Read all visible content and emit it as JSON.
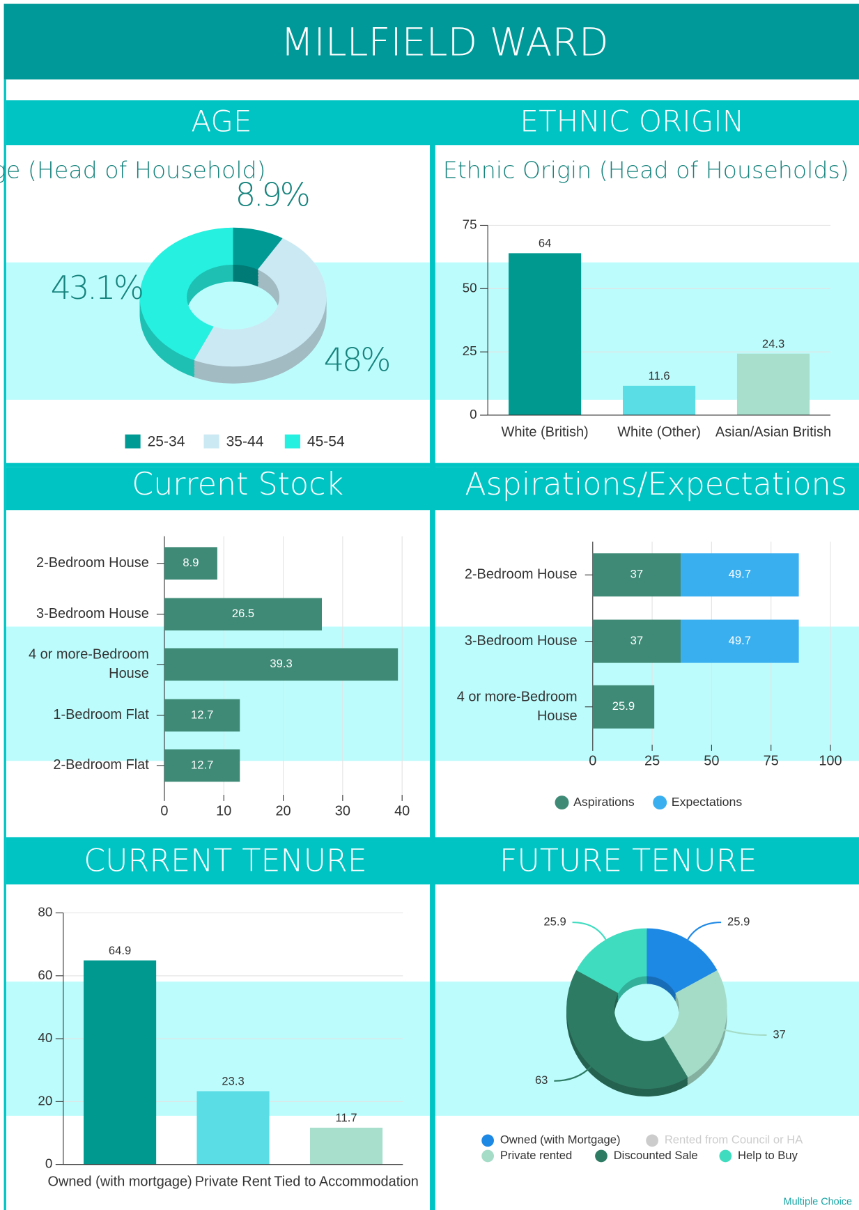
{
  "title": "MILLFIELD WARD",
  "footer": "Multiple Choice",
  "chart_data": [
    {
      "type": "pie",
      "heading": "AGE",
      "title": "Age (Head of Household)",
      "categories": [
        "25-34",
        "35-44",
        "45-54"
      ],
      "values": [
        8.9,
        48,
        43.1
      ],
      "value_labels": [
        "8.9%",
        "48%",
        "43.1%"
      ],
      "colors": [
        "#009a94",
        "#cbe9f3",
        "#26f0e0"
      ],
      "legend": "bottom"
    },
    {
      "type": "bar",
      "heading": "ETHNIC ORIGIN",
      "title": "Ethnic Origin (Head of Households)",
      "categories": [
        "White (British)",
        "White (Other)",
        "Asian/Asian British"
      ],
      "values": [
        64,
        11.6,
        24.3
      ],
      "colors": [
        "#009990",
        "#5adde5",
        "#a8dfcc"
      ],
      "ylim": [
        0,
        75
      ],
      "yticks": [
        0,
        25,
        50,
        75
      ],
      "grid": true
    },
    {
      "type": "hbar",
      "heading": "Current Stock",
      "categories": [
        "2-Bedroom House",
        "3-Bedroom House",
        "4 or more-Bedroom House",
        "1-Bedroom Flat",
        "2-Bedroom Flat"
      ],
      "values": [
        8.9,
        26.5,
        39.3,
        12.7,
        12.7
      ],
      "color": "#3f8a76",
      "xlim": [
        0,
        40
      ],
      "xticks": [
        0,
        10,
        20,
        30,
        40
      ],
      "grid": true
    },
    {
      "type": "stacked_hbar",
      "heading": "Aspirations/Expectations",
      "categories": [
        "2-Bedroom House",
        "3-Bedroom House",
        "4 or more-Bedroom House"
      ],
      "series": [
        {
          "name": "Aspirations",
          "color": "#3f8a76",
          "values": [
            37,
            37,
            25.9
          ]
        },
        {
          "name": "Expectations",
          "color": "#3aafef",
          "values": [
            49.7,
            49.7,
            null
          ]
        }
      ],
      "xlim": [
        0,
        100
      ],
      "xticks": [
        0,
        25,
        50,
        75,
        100
      ],
      "grid": true,
      "legend": "bottom"
    },
    {
      "type": "bar",
      "heading": "CURRENT TENURE",
      "categories": [
        "Owned (with mortgage)",
        "Private Rent",
        "Tied to Accommodation"
      ],
      "values": [
        64.9,
        23.3,
        11.7
      ],
      "colors": [
        "#009990",
        "#5adde5",
        "#a8dfcc"
      ],
      "ylim": [
        0,
        80
      ],
      "yticks": [
        0,
        20,
        40,
        60,
        80
      ],
      "grid": true
    },
    {
      "type": "donut",
      "heading": "FUTURE TENURE",
      "categories": [
        "Owned (with Mortgage)",
        "Rented from Council or HA",
        "Private rented",
        "Discounted Sale",
        "Help to Buy"
      ],
      "values": [
        25.9,
        null,
        37,
        63,
        25.9
      ],
      "colors": [
        "#1e88e5",
        "#cccccc",
        "#a5dcc8",
        "#2e7b64",
        "#40dcc0"
      ],
      "legend": "bottom"
    }
  ]
}
